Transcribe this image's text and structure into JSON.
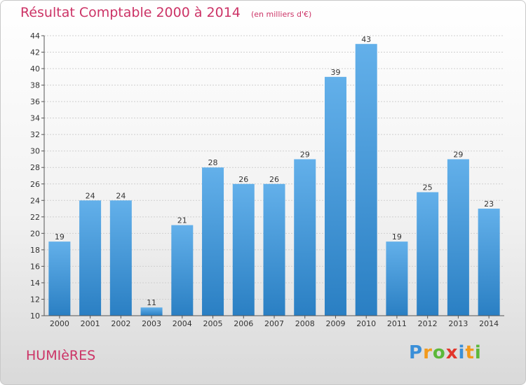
{
  "chart_data": {
    "type": "bar",
    "title": "Résultat Comptable 2000 à 2014",
    "subtitle": "(en milliers d'€)",
    "categories": [
      "2000",
      "2001",
      "2002",
      "2003",
      "2004",
      "2005",
      "2006",
      "2007",
      "2008",
      "2009",
      "2010",
      "2011",
      "2012",
      "2013",
      "2014"
    ],
    "values": [
      19,
      24,
      24,
      11,
      21,
      28,
      26,
      26,
      29,
      39,
      43,
      19,
      25,
      29,
      23
    ],
    "ylim": [
      10,
      44
    ],
    "yticks": [
      10,
      12,
      14,
      16,
      18,
      20,
      22,
      24,
      26,
      28,
      30,
      32,
      34,
      36,
      38,
      40,
      42,
      44
    ],
    "grid": true,
    "xlabel": "",
    "ylabel": "",
    "bar_color_top": "#63b0ea",
    "bar_color_bottom": "#2a7fc3"
  },
  "commune": "HUMIèRES",
  "logo": {
    "letters": [
      "P",
      "r",
      "o",
      "x",
      "i",
      "t",
      "i"
    ],
    "colors": [
      "#3a8fd8",
      "#f29a1c",
      "#5cb83a",
      "#e2362c",
      "#3a8fd8",
      "#f29a1c",
      "#5cb83a"
    ]
  }
}
